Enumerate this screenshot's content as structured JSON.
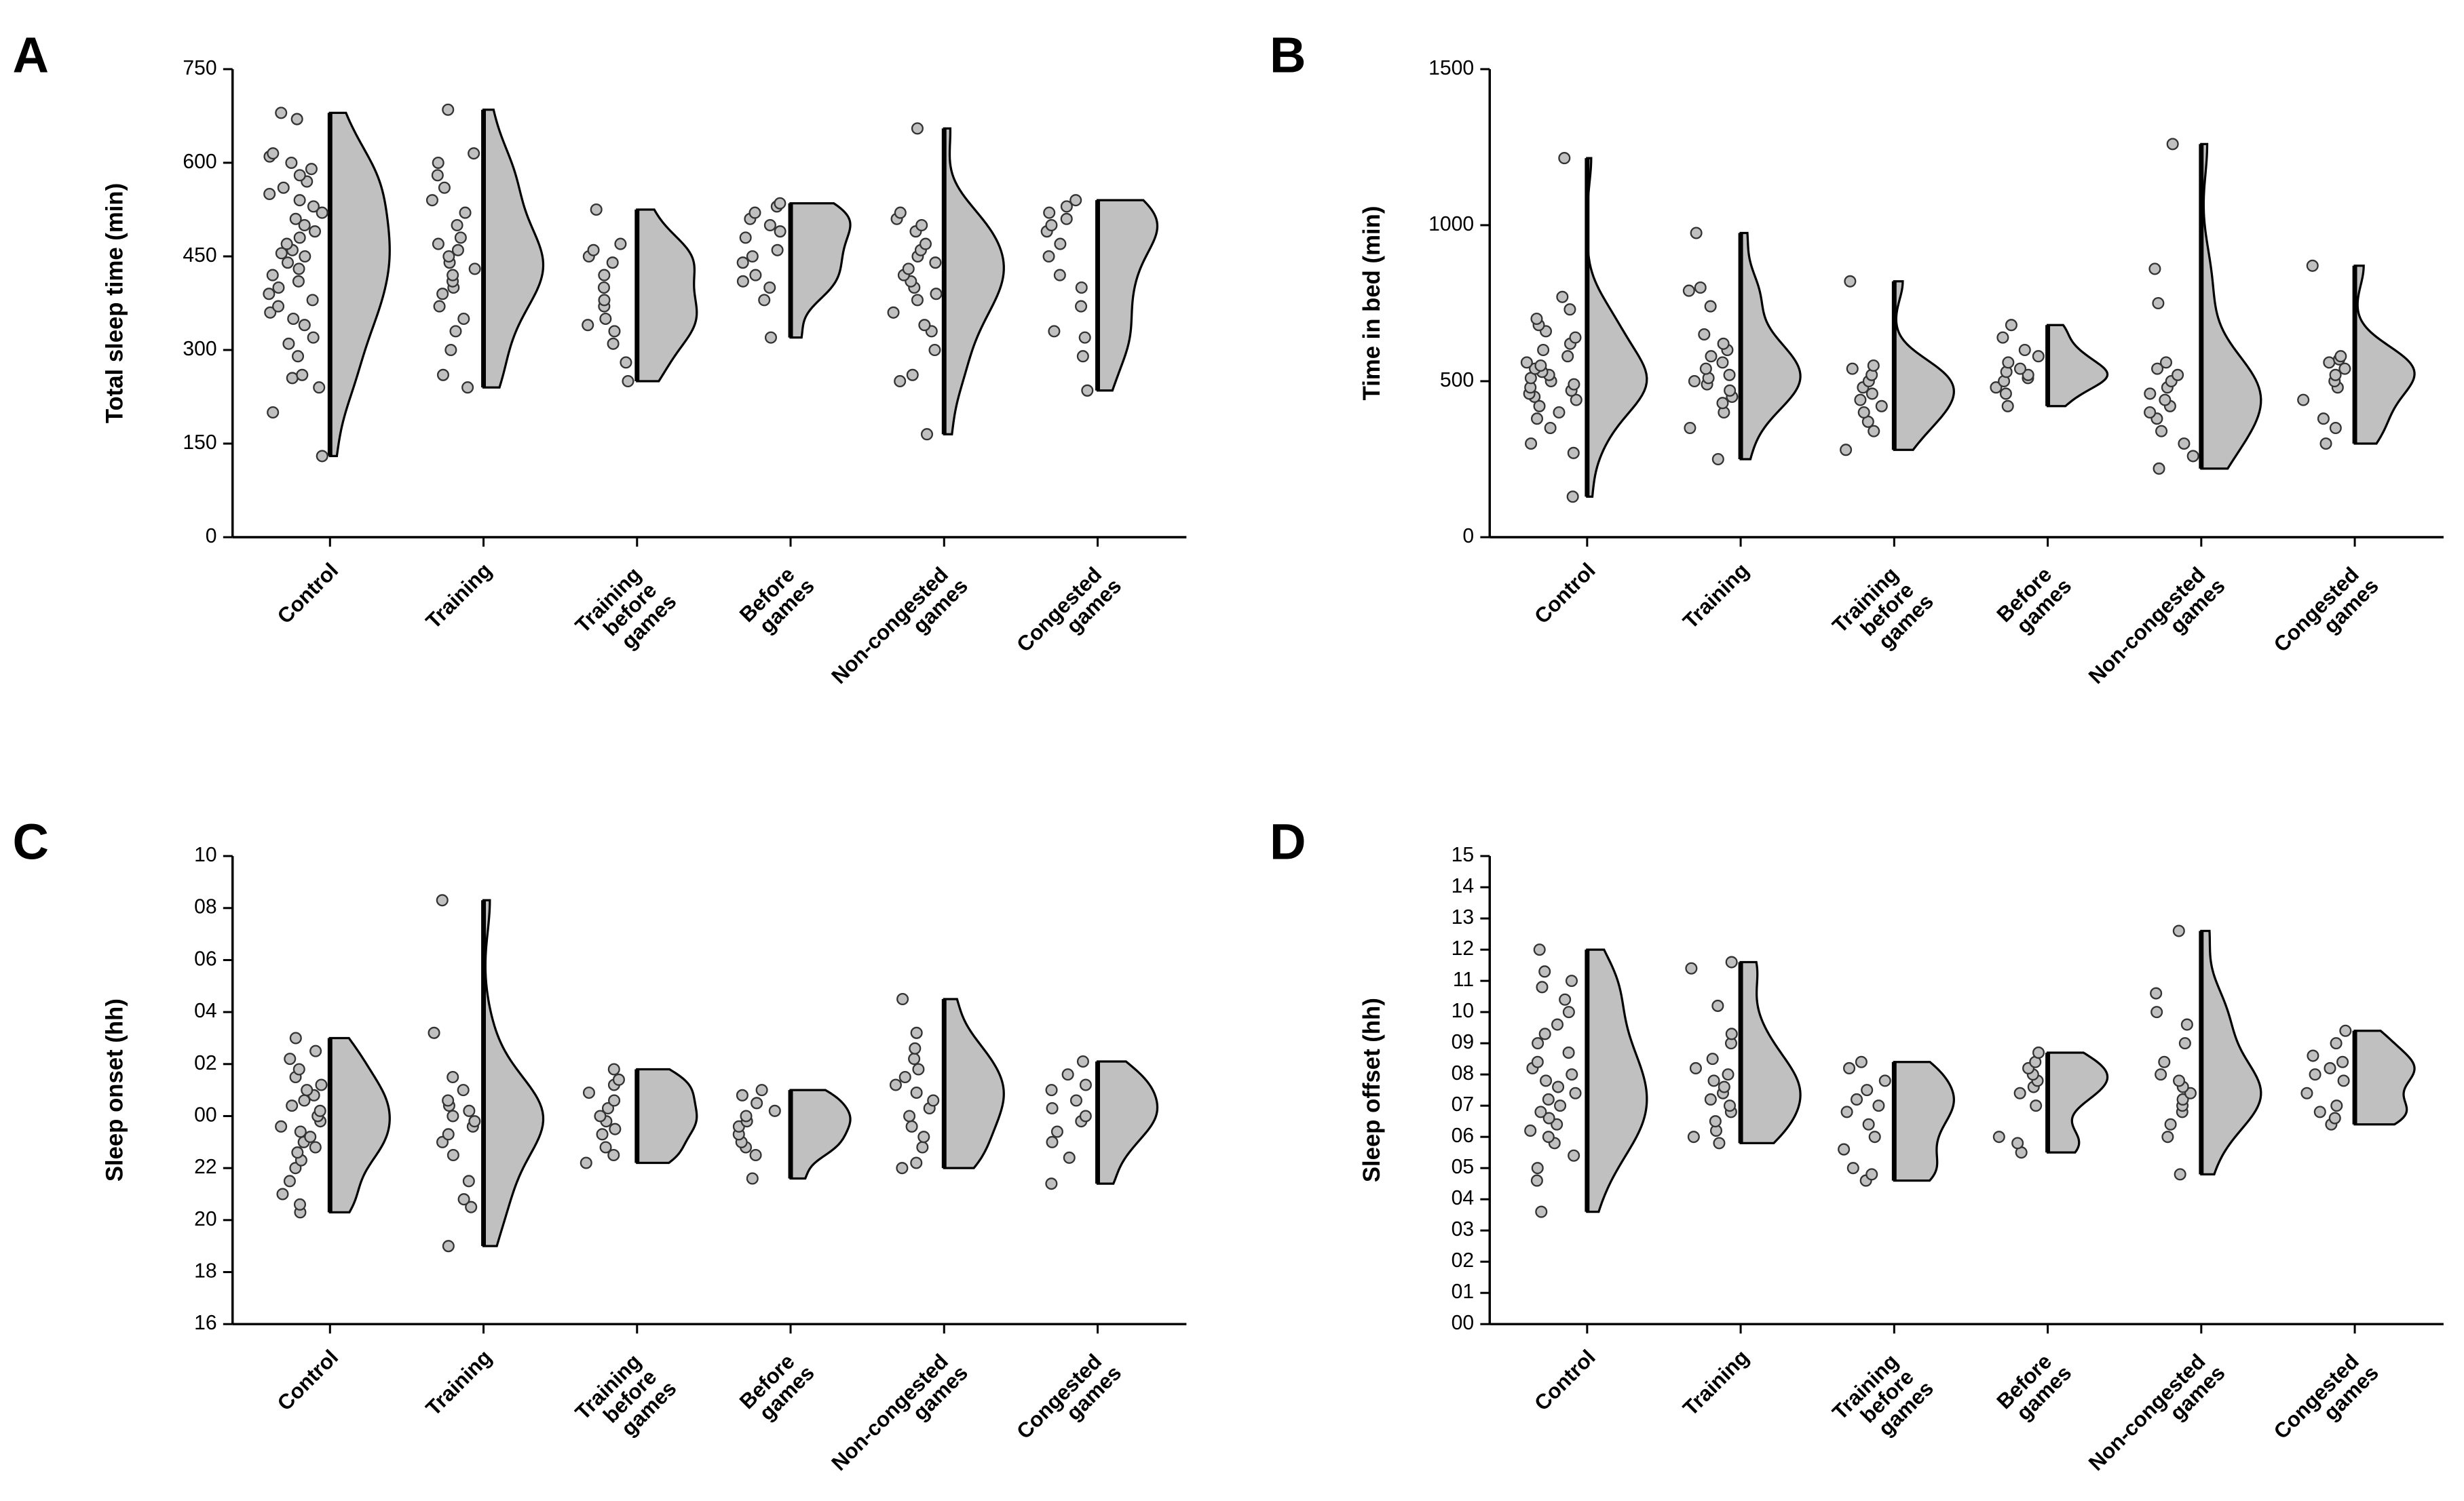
{
  "chart_data": [
    {
      "type": "raincloud",
      "panel_label": "A",
      "ylabel": "Total sleep time (min)",
      "color": "#c0c0c0",
      "categories": [
        "Control",
        "Training",
        "Training before games",
        "Before games",
        "Non-congested games",
        "Congested games"
      ],
      "ylim": [
        0,
        750
      ],
      "yticks": [
        0,
        150,
        300,
        450,
        600,
        750
      ],
      "values": [
        [
          130,
          200,
          240,
          255,
          260,
          290,
          310,
          320,
          340,
          350,
          360,
          370,
          380,
          390,
          400,
          410,
          420,
          430,
          440,
          450,
          455,
          460,
          470,
          480,
          490,
          500,
          510,
          520,
          530,
          540,
          550,
          560,
          570,
          580,
          590,
          600,
          610,
          615,
          670,
          680
        ],
        [
          240,
          260,
          300,
          330,
          350,
          370,
          390,
          400,
          410,
          420,
          430,
          440,
          450,
          460,
          470,
          480,
          500,
          520,
          540,
          560,
          580,
          600,
          615,
          685
        ],
        [
          250,
          280,
          310,
          330,
          340,
          350,
          370,
          380,
          400,
          420,
          440,
          450,
          460,
          470,
          525
        ],
        [
          320,
          380,
          400,
          410,
          420,
          440,
          450,
          460,
          480,
          490,
          500,
          510,
          520,
          530,
          535
        ],
        [
          165,
          250,
          260,
          300,
          330,
          340,
          360,
          380,
          390,
          400,
          410,
          420,
          430,
          440,
          450,
          460,
          470,
          490,
          500,
          510,
          520,
          655
        ],
        [
          235,
          290,
          320,
          330,
          370,
          400,
          420,
          450,
          470,
          490,
          500,
          510,
          520,
          530,
          540
        ]
      ]
    },
    {
      "type": "raincloud",
      "panel_label": "B",
      "ylabel": "Time in bed (min)",
      "color": "#c0c0c0",
      "categories": [
        "Control",
        "Training",
        "Training before games",
        "Before games",
        "Non-congested games",
        "Congested games"
      ],
      "ylim": [
        0,
        1500
      ],
      "yticks": [
        0,
        500,
        1000,
        1500
      ],
      "values": [
        [
          130,
          270,
          300,
          350,
          380,
          400,
          420,
          440,
          450,
          460,
          470,
          480,
          490,
          500,
          510,
          520,
          530,
          540,
          550,
          560,
          580,
          600,
          620,
          640,
          660,
          680,
          700,
          730,
          770,
          1215
        ],
        [
          250,
          350,
          400,
          430,
          450,
          470,
          490,
          500,
          510,
          520,
          540,
          560,
          580,
          600,
          620,
          650,
          740,
          790,
          800,
          975
        ],
        [
          280,
          340,
          370,
          400,
          420,
          440,
          460,
          480,
          500,
          520,
          540,
          550,
          820
        ],
        [
          420,
          460,
          480,
          500,
          510,
          520,
          530,
          540,
          560,
          580,
          600,
          640,
          680
        ],
        [
          220,
          260,
          300,
          340,
          380,
          400,
          420,
          440,
          460,
          480,
          500,
          520,
          540,
          560,
          750,
          860,
          1260
        ],
        [
          300,
          350,
          380,
          440,
          480,
          500,
          520,
          540,
          560,
          570,
          580,
          870
        ]
      ]
    },
    {
      "type": "raincloud",
      "panel_label": "C",
      "ylabel": "Sleep onset (hh)",
      "color": "#c0c0c0",
      "categories": [
        "Control",
        "Training",
        "Training before games",
        "Before games",
        "Non-congested games",
        "Congested games"
      ],
      "ylim": [
        16,
        34
      ],
      "yticks": [
        16,
        18,
        20,
        22,
        {
          "value": 24,
          "label": "00"
        },
        {
          "value": 26,
          "label": "02"
        },
        {
          "value": 28,
          "label": "04"
        },
        {
          "value": 30,
          "label": "06"
        },
        {
          "value": 32,
          "label": "08"
        },
        {
          "value": 34,
          "label": "10"
        }
      ],
      "values": [
        [
          20.3,
          20.6,
          21,
          21.5,
          22,
          22.3,
          22.6,
          22.8,
          23,
          23.2,
          23.4,
          23.6,
          23.8,
          24,
          24.2,
          24.4,
          24.6,
          24.8,
          25,
          25.2,
          25.5,
          25.8,
          26.2,
          26.5,
          27
        ],
        [
          19,
          20.5,
          20.8,
          21.5,
          22.5,
          23,
          23.3,
          23.6,
          23.8,
          24,
          24.2,
          24.4,
          24.6,
          25,
          25.5,
          27.2,
          32.3
        ],
        [
          22.2,
          22.5,
          22.8,
          23.3,
          23.5,
          23.8,
          24,
          24.3,
          24.6,
          24.9,
          25.2,
          25.4,
          25.8
        ],
        [
          21.6,
          22.5,
          22.8,
          23,
          23.3,
          23.6,
          23.8,
          24,
          24.2,
          24.5,
          24.8,
          25
        ],
        [
          22,
          22.2,
          22.8,
          23.2,
          23.6,
          24,
          24.3,
          24.6,
          24.9,
          25.2,
          25.5,
          25.8,
          26.2,
          26.6,
          27.2,
          28.5
        ],
        [
          21.4,
          22.4,
          23,
          23.4,
          23.8,
          24,
          24.3,
          24.6,
          25,
          25.2,
          25.6,
          26.1
        ]
      ]
    },
    {
      "type": "raincloud",
      "panel_label": "D",
      "ylabel": "Sleep offset (hh)",
      "color": "#c0c0c0",
      "categories": [
        "Control",
        "Training",
        "Training before games",
        "Before games",
        "Non-congested games",
        "Congested games"
      ],
      "ylim": [
        0,
        15
      ],
      "yticks": [
        {
          "value": 0,
          "label": "00"
        },
        {
          "value": 1,
          "label": "01"
        },
        {
          "value": 2,
          "label": "02"
        },
        {
          "value": 3,
          "label": "03"
        },
        {
          "value": 4,
          "label": "04"
        },
        {
          "value": 5,
          "label": "05"
        },
        {
          "value": 6,
          "label": "06"
        },
        {
          "value": 7,
          "label": "07"
        },
        {
          "value": 8,
          "label": "08"
        },
        {
          "value": 9,
          "label": "09"
        },
        10,
        11,
        12,
        13,
        14,
        15
      ],
      "values": [
        [
          3.6,
          4.6,
          5,
          5.4,
          5.8,
          6,
          6.2,
          6.4,
          6.6,
          6.8,
          7,
          7.2,
          7.4,
          7.6,
          7.8,
          8,
          8.2,
          8.4,
          8.7,
          9,
          9.3,
          9.6,
          10,
          10.4,
          10.8,
          11,
          11.3,
          12
        ],
        [
          5.8,
          6,
          6.2,
          6.5,
          6.8,
          7,
          7.2,
          7.4,
          7.6,
          7.8,
          8,
          8.2,
          8.5,
          9,
          9.3,
          10.2,
          11.4,
          11.6
        ],
        [
          4.6,
          4.8,
          5,
          5.6,
          6,
          6.4,
          6.8,
          7,
          7.2,
          7.5,
          7.8,
          8.2,
          8.4
        ],
        [
          5.5,
          5.8,
          6,
          7,
          7.4,
          7.6,
          7.8,
          8,
          8.2,
          8.4,
          8.7
        ],
        [
          4.8,
          6,
          6.4,
          6.8,
          7,
          7.2,
          7.4,
          7.6,
          7.8,
          8,
          8.4,
          9,
          9.6,
          10,
          10.6,
          12.6
        ],
        [
          6.4,
          6.6,
          6.8,
          7,
          7.4,
          7.8,
          8,
          8.2,
          8.4,
          8.6,
          9,
          9.4
        ]
      ]
    }
  ]
}
